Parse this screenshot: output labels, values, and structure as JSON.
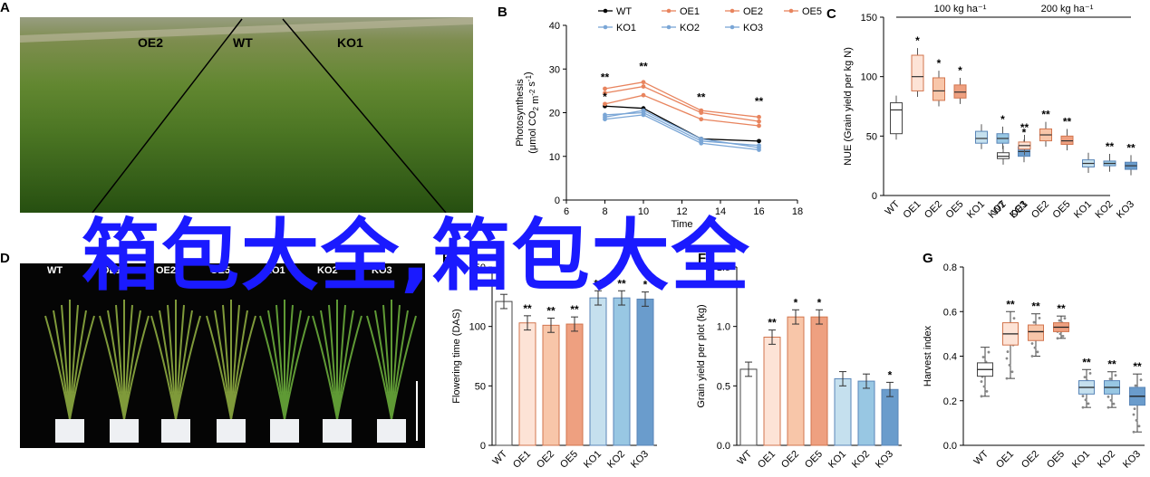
{
  "panels": {
    "A": {
      "letter": "A",
      "plot_labels": [
        "OE2",
        "WT",
        "KO1"
      ]
    },
    "D": {
      "letter": "D",
      "genotypes": [
        "WT",
        "OE1",
        "OE2",
        "OE5",
        "KO1",
        "KO2",
        "KO3"
      ]
    }
  },
  "watermark": "箱包大全,箱包大全",
  "colors": {
    "WT": "#ffffff",
    "OE1": "#fde3d6",
    "OE2": "#f8c6a9",
    "OE5": "#eea080",
    "KO1": "#c5e0ee",
    "KO2": "#98c7e3",
    "KO3": "#6a9ccc",
    "OE_line": "#e8845e",
    "KO_line": "#7aa6d6"
  },
  "chart_data": [
    {
      "panel": "B",
      "type": "line",
      "ylabel_lines": [
        "Photosynthesis",
        "(μmol CO",
        "2",
        " m",
        "-2",
        " s",
        "-1",
        ")"
      ],
      "xlabel": "Time",
      "ylim": [
        0,
        40
      ],
      "yticks": [
        0,
        10,
        20,
        30,
        40
      ],
      "xlim": [
        6,
        18
      ],
      "xticks": [
        6,
        8,
        10,
        12,
        14,
        16,
        18
      ],
      "legend": [
        "WT",
        "OE1",
        "OE2",
        "OE5",
        "KO1",
        "KO2",
        "KO3"
      ],
      "x": [
        8,
        10,
        13,
        16
      ],
      "series": [
        {
          "name": "WT",
          "values": [
            21.5,
            21.0,
            14.0,
            13.5
          ]
        },
        {
          "name": "OE1",
          "values": [
            24.5,
            26.0,
            20.0,
            18.0
          ]
        },
        {
          "name": "OE2",
          "values": [
            25.5,
            27.0,
            20.5,
            19.0
          ]
        },
        {
          "name": "OE5",
          "values": [
            22.0,
            24.0,
            18.5,
            17.0
          ]
        },
        {
          "name": "KO1",
          "values": [
            19.5,
            20.0,
            13.5,
            12.5
          ]
        },
        {
          "name": "KO2",
          "values": [
            19.0,
            20.5,
            14.0,
            12.0
          ]
        },
        {
          "name": "KO3",
          "values": [
            18.5,
            19.5,
            13.0,
            11.5
          ]
        }
      ],
      "annotations": [
        {
          "x": 8,
          "text": "**"
        },
        {
          "x": 8,
          "text": "*"
        },
        {
          "x": 10,
          "text": "**"
        },
        {
          "x": 13,
          "text": "**"
        },
        {
          "x": 16,
          "text": "**"
        }
      ]
    },
    {
      "panel": "C",
      "type": "box",
      "ylabel": "NUE (Grain yield per kg N)",
      "ylim": [
        0,
        150
      ],
      "yticks": [
        0,
        50,
        100,
        150
      ],
      "groups": [
        "100 kg ha⁻¹",
        "200 kg ha⁻¹"
      ],
      "categories": [
        "WT",
        "OE1",
        "OE2",
        "OE5",
        "KO1",
        "KO2",
        "KO3"
      ],
      "group_values": [
        [
          {
            "name": "WT",
            "q1": 52,
            "median": 72,
            "q3": 78,
            "sig": ""
          },
          {
            "name": "OE1",
            "q1": 88,
            "median": 100,
            "q3": 118,
            "sig": "*"
          },
          {
            "name": "OE2",
            "q1": 80,
            "median": 88,
            "q3": 99,
            "sig": "*"
          },
          {
            "name": "OE5",
            "q1": 82,
            "median": 87,
            "q3": 93,
            "sig": "*"
          },
          {
            "name": "KO1",
            "q1": 44,
            "median": 48,
            "q3": 54,
            "sig": ""
          },
          {
            "name": "KO2",
            "q1": 44,
            "median": 48,
            "q3": 52,
            "sig": "*"
          },
          {
            "name": "KO3",
            "q1": 33,
            "median": 37,
            "q3": 41,
            "sig": "*"
          }
        ],
        [
          {
            "name": "WT",
            "q1": 31,
            "median": 33,
            "q3": 36,
            "sig": ""
          },
          {
            "name": "OE1",
            "q1": 39,
            "median": 42,
            "q3": 45,
            "sig": "**"
          },
          {
            "name": "OE2",
            "q1": 46,
            "median": 51,
            "q3": 56,
            "sig": "**"
          },
          {
            "name": "OE5",
            "q1": 43,
            "median": 46,
            "q3": 50,
            "sig": "**"
          },
          {
            "name": "KO1",
            "q1": 24,
            "median": 27,
            "q3": 30,
            "sig": ""
          },
          {
            "name": "KO2",
            "q1": 25,
            "median": 27,
            "q3": 29,
            "sig": "**"
          },
          {
            "name": "KO3",
            "q1": 22,
            "median": 25,
            "q3": 28,
            "sig": "**"
          }
        ]
      ]
    },
    {
      "panel": "E",
      "type": "bar",
      "ylabel": "Flowering time (DAS)",
      "ylim": [
        0,
        150
      ],
      "yticks": [
        0,
        50,
        100,
        150
      ],
      "categories": [
        "WT",
        "OE1",
        "OE2",
        "OE5",
        "KO1",
        "KO2",
        "KO3"
      ],
      "values": [
        121,
        103,
        101,
        102,
        124,
        124,
        123
      ],
      "sig": [
        "",
        "**",
        "**",
        "**",
        "**",
        "**",
        "*"
      ]
    },
    {
      "panel": "F",
      "type": "bar",
      "ylabel": "Grain yield per plot (kg)",
      "ylim": [
        0,
        1.5
      ],
      "yticks": [
        0,
        0.5,
        1.0,
        1.5
      ],
      "ytick_labels": [
        "0.0",
        "0.5",
        "1.0",
        "1.5"
      ],
      "categories": [
        "WT",
        "OE1",
        "OE2",
        "OE5",
        "KO1",
        "KO2",
        "KO3"
      ],
      "values": [
        0.64,
        0.91,
        1.08,
        1.08,
        0.56,
        0.54,
        0.47
      ],
      "sig": [
        "",
        "**",
        "*",
        "*",
        "",
        "",
        "*"
      ]
    },
    {
      "panel": "G",
      "type": "box",
      "ylabel": "Harvest index",
      "ylim": [
        0,
        0.8
      ],
      "yticks": [
        0,
        0.2,
        0.4,
        0.6,
        0.8
      ],
      "ytick_labels": [
        "0.0",
        "0.2",
        "0.4",
        "0.6",
        "0.8"
      ],
      "categories": [
        "WT",
        "OE1",
        "OE2",
        "OE5",
        "KO1",
        "KO2",
        "KO3"
      ],
      "boxes": [
        {
          "name": "WT",
          "q1": 0.31,
          "median": 0.34,
          "q3": 0.37,
          "low": 0.22,
          "high": 0.44,
          "sig": ""
        },
        {
          "name": "OE1",
          "q1": 0.45,
          "median": 0.5,
          "q3": 0.55,
          "low": 0.3,
          "high": 0.6,
          "sig": "**"
        },
        {
          "name": "OE2",
          "q1": 0.47,
          "median": 0.51,
          "q3": 0.54,
          "low": 0.4,
          "high": 0.59,
          "sig": "**"
        },
        {
          "name": "OE5",
          "q1": 0.51,
          "median": 0.53,
          "q3": 0.55,
          "low": 0.48,
          "high": 0.58,
          "sig": "**"
        },
        {
          "name": "KO1",
          "q1": 0.23,
          "median": 0.26,
          "q3": 0.29,
          "low": 0.17,
          "high": 0.34,
          "sig": "**"
        },
        {
          "name": "KO2",
          "q1": 0.23,
          "median": 0.26,
          "q3": 0.29,
          "low": 0.17,
          "high": 0.33,
          "sig": "**"
        },
        {
          "name": "KO3",
          "q1": 0.18,
          "median": 0.22,
          "q3": 0.26,
          "low": 0.06,
          "high": 0.32,
          "sig": "**"
        }
      ]
    }
  ]
}
